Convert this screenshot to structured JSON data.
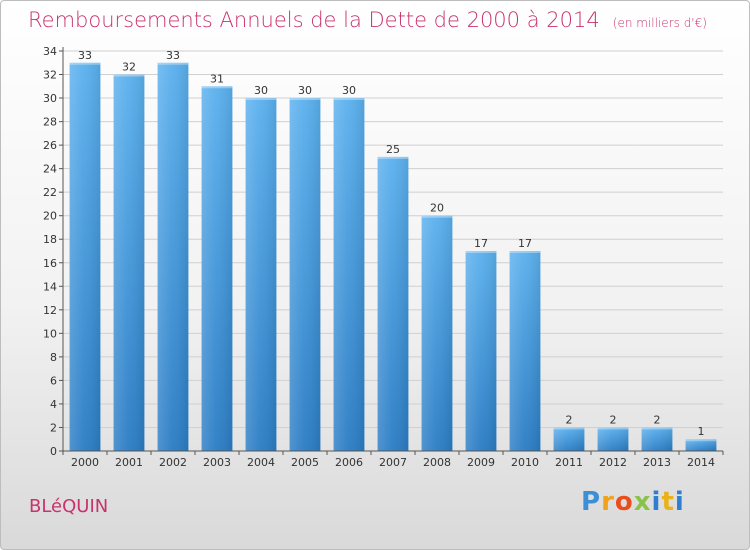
{
  "chart_data": {
    "type": "bar",
    "title": "Remboursements Annuels de la Dette de 2000 à 2014",
    "unit_note": "(en milliers d'€)",
    "categories": [
      "2000",
      "2001",
      "2002",
      "2003",
      "2004",
      "2005",
      "2006",
      "2007",
      "2008",
      "2009",
      "2010",
      "2011",
      "2012",
      "2013",
      "2014"
    ],
    "values": [
      33,
      32,
      33,
      31,
      30,
      30,
      30,
      25,
      20,
      17,
      17,
      2,
      2,
      2,
      1
    ],
    "ylim": [
      0,
      34
    ],
    "yticks": [
      0,
      2,
      4,
      6,
      8,
      10,
      12,
      14,
      16,
      18,
      20,
      22,
      24,
      26,
      28,
      30,
      32,
      34
    ],
    "xlabel": "",
    "ylabel": "",
    "grid": true,
    "colors": {
      "bar_top": "#5ab0ee",
      "bar_bottom": "#2a7cc4",
      "title": "#c8336d"
    }
  },
  "footer": {
    "town": "BLéQUIN"
  },
  "logo": {
    "letters": [
      "P",
      "r",
      "o",
      "x",
      "i",
      "t",
      "i"
    ]
  }
}
